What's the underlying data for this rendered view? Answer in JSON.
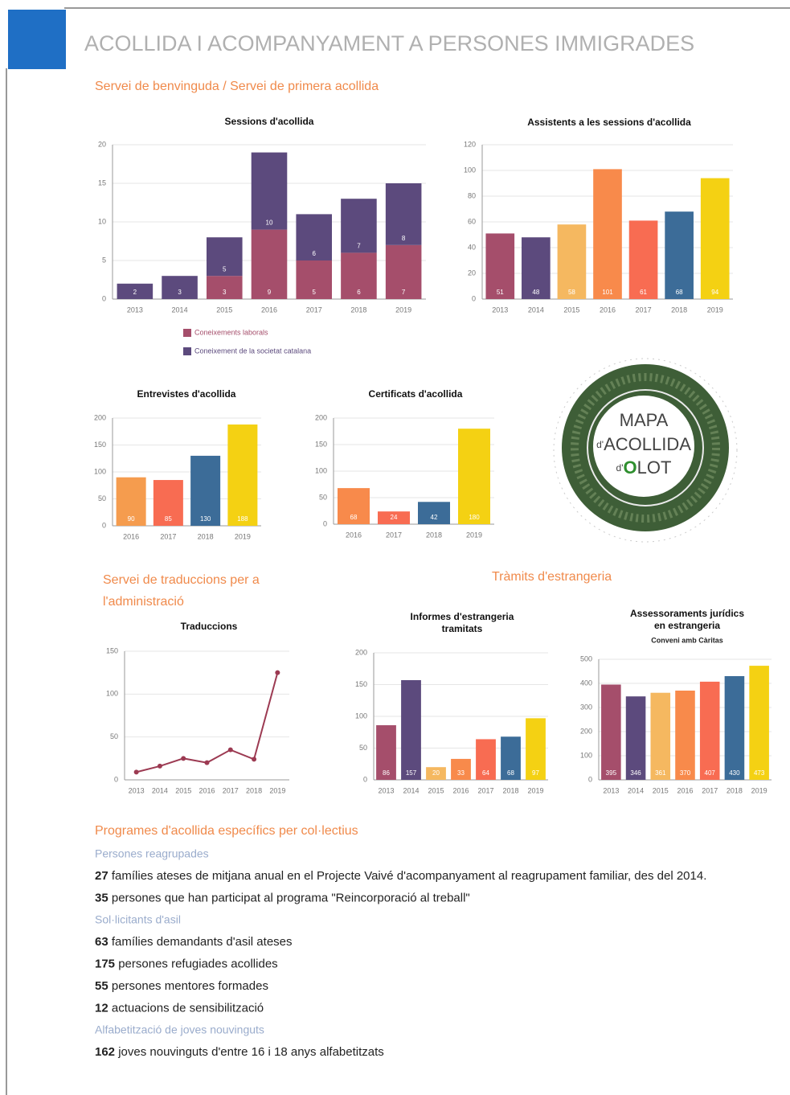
{
  "header": {
    "title": "ACOLLIDA I ACOMPANYAMENT A PERSONES IMMIGRADES"
  },
  "sections": {
    "benvinguda": "Servei de benvinguda / Servei de primera acollida",
    "traduccions": [
      "Servei de traduccions per a",
      "l'administració"
    ],
    "estrangeria": "Tràmits d'estrangeria"
  },
  "map": {
    "title": "MAPA",
    "line2_prefix": "d'",
    "line2": "ACOLLIDA",
    "line3_prefix": "d'",
    "line3_initial": "O",
    "line3_rest": "LOT"
  },
  "chart_data": [
    {
      "type": "bar",
      "title": "Sessions d'acollida",
      "categories": [
        "2013",
        "2014",
        "2015",
        "2016",
        "2017",
        "2018",
        "2019"
      ],
      "series": [
        {
          "name": "Coneixements laborals",
          "color": "#a54e6b",
          "values": [
            null,
            null,
            3,
            9,
            5,
            6,
            7
          ]
        },
        {
          "name": "Coneixement de la societat catalana",
          "color": "#5c4a7d",
          "values": [
            2,
            3,
            5,
            10,
            6,
            7,
            8
          ]
        }
      ],
      "ylim": [
        0,
        20
      ],
      "yticks": [
        0,
        5,
        10,
        15,
        20
      ],
      "grid": true
    },
    {
      "type": "bar",
      "title": "Assistents a les sessions d'acollida",
      "categories": [
        "2013",
        "2014",
        "2015",
        "2016",
        "2017",
        "2018",
        "2019"
      ],
      "values": [
        51,
        48,
        58,
        101,
        61,
        68,
        94
      ],
      "colors": [
        "#a54e6b",
        "#5c4a7d",
        "#f5b860",
        "#f88a4b",
        "#f86c52",
        "#3c6c98",
        "#f4d113"
      ],
      "ylim": [
        0,
        120
      ],
      "yticks": [
        0,
        20,
        40,
        60,
        80,
        100,
        120
      ],
      "grid": true
    },
    {
      "type": "bar",
      "title": "Entrevistes d'acollida",
      "categories": [
        "2016",
        "2017",
        "2018",
        "2019"
      ],
      "values": [
        90,
        85,
        130,
        188
      ],
      "colors": [
        "#f59c4e",
        "#f86c52",
        "#3c6c98",
        "#f4d113"
      ],
      "ylim": [
        0,
        200
      ],
      "yticks": [
        0,
        50,
        100,
        150,
        200
      ],
      "grid": true
    },
    {
      "type": "bar",
      "title": "Certificats d'acollida",
      "categories": [
        "2016",
        "2017",
        "2018",
        "2019"
      ],
      "values": [
        68,
        24,
        42,
        180
      ],
      "colors": [
        "#f88a4b",
        "#f86c52",
        "#3c6c98",
        "#f4d113"
      ],
      "ylim": [
        0,
        200
      ],
      "yticks": [
        0,
        50,
        100,
        150,
        200
      ],
      "grid": true
    },
    {
      "type": "line",
      "title": "Traduccions",
      "categories": [
        "2013",
        "2014",
        "2015",
        "2016",
        "2017",
        "2018",
        "2019"
      ],
      "values": [
        9,
        16,
        25,
        20,
        35,
        24,
        125
      ],
      "color": "#9c3a52",
      "ylim": [
        0,
        150
      ],
      "yticks": [
        0,
        50,
        100,
        150
      ],
      "grid": true
    },
    {
      "type": "bar",
      "title": [
        "Informes d'estrangeria",
        "tramitats"
      ],
      "categories": [
        "2013",
        "2014",
        "2015",
        "2016",
        "2017",
        "2018",
        "2019"
      ],
      "values": [
        86,
        157,
        20,
        33,
        64,
        68,
        97
      ],
      "colors": [
        "#a54e6b",
        "#5c4a7d",
        "#f5b860",
        "#f88a4b",
        "#f86c52",
        "#3c6c98",
        "#f4d113"
      ],
      "ylim": [
        0,
        200
      ],
      "yticks": [
        0,
        50,
        100,
        150,
        200
      ],
      "grid": true
    },
    {
      "type": "bar",
      "title": [
        "Assessoraments jurídics",
        "en estrangeria"
      ],
      "subtitle": "Conveni amb Càritas",
      "categories": [
        "2013",
        "2014",
        "2015",
        "2016",
        "2017",
        "2018",
        "2019"
      ],
      "values": [
        395,
        346,
        361,
        370,
        407,
        430,
        473
      ],
      "colors": [
        "#a54e6b",
        "#5c4a7d",
        "#f5b860",
        "#f88a4b",
        "#f86c52",
        "#3c6c98",
        "#f4d113"
      ],
      "ylim": [
        0,
        500
      ],
      "yticks": [
        0,
        100,
        200,
        300,
        400,
        500
      ],
      "grid": true
    }
  ],
  "programs": {
    "title": "Programes d'acollida específics per col·lectius",
    "groups": [
      {
        "heading": "Persones reagrupades",
        "items": [
          {
            "number": 27,
            "text": "famílies ateses de mitjana anual en el Projecte Vaivé d'acompanyament al reagrupament familiar, des del 2014."
          },
          {
            "number": 35,
            "text": "persones que han participat al programa \"Reincorporació al treball\""
          }
        ]
      },
      {
        "heading": "Sol·licitants d'asil",
        "items": [
          {
            "number": 63,
            "text": "famílies demandants d'asil ateses"
          },
          {
            "number": 175,
            "text": "persones refugiades acollides"
          },
          {
            "number": 55,
            "text": "persones mentores formades"
          },
          {
            "number": 12,
            "text": "actuacions de sensibilització"
          }
        ]
      },
      {
        "heading": "Alfabetització de joves nouvinguts",
        "items": [
          {
            "number": 162,
            "text": "joves nouvinguts d'entre 16 i 18 anys alfabetitzats"
          }
        ]
      }
    ]
  }
}
